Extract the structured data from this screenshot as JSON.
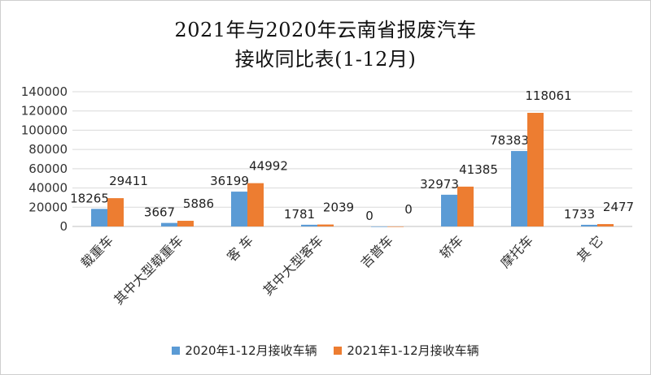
{
  "chart_data": {
    "type": "bar",
    "title_line1": "2021年与2020年云南省报废汽车",
    "title_line2": "接收同比表(1-12月)",
    "categories": [
      "载重车",
      "其中大型载重车",
      "客 车",
      "其中大型客车",
      "吉普车",
      "轿车",
      "摩托车",
      "其 它"
    ],
    "series": [
      {
        "name": "2020年1-12月接收车辆",
        "color": "#5b9bd5",
        "values": [
          18265,
          3667,
          36199,
          1781,
          0,
          32973,
          78383,
          1733
        ]
      },
      {
        "name": "2021年1-12月接收车辆",
        "color": "#ed7d31",
        "values": [
          29411,
          5886,
          44992,
          2039,
          0,
          41385,
          118061,
          2477
        ]
      }
    ],
    "ylim": [
      0,
      140000
    ],
    "yticks": [
      "0",
      "20000",
      "40000",
      "60000",
      "80000",
      "100000",
      "120000",
      "140000"
    ],
    "grid": true,
    "legend_position": "bottom"
  }
}
